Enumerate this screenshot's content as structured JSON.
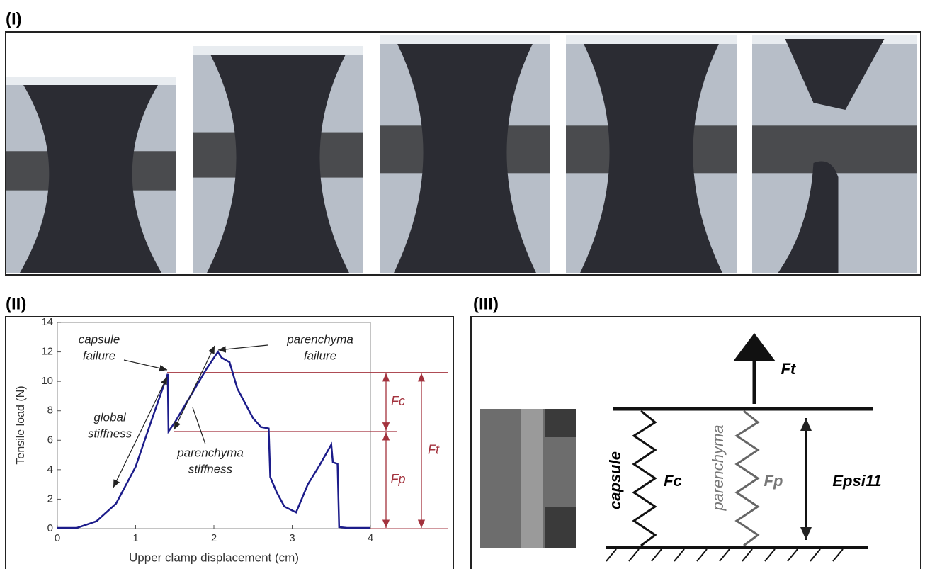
{
  "panel_labels": [
    "(I)",
    "(II)",
    "(III)"
  ],
  "chart_data": {
    "type": "line",
    "xlabel": "Upper clamp displacement (cm)",
    "ylabel": "Tensile load (N)",
    "x": [
      0,
      0.25,
      0.5,
      0.75,
      1.0,
      1.2,
      1.41,
      1.42,
      1.5,
      1.7,
      1.9,
      2.05,
      2.1,
      2.2,
      2.3,
      2.5,
      2.6,
      2.7,
      2.72,
      2.8,
      2.9,
      3.05,
      3.2,
      3.35,
      3.5,
      3.52,
      3.58,
      3.6,
      3.7,
      4.0
    ],
    "values": [
      0.05,
      0.05,
      0.5,
      1.7,
      4.2,
      7.3,
      10.5,
      6.6,
      7.2,
      9.0,
      10.8,
      12.0,
      11.6,
      11.3,
      9.5,
      7.5,
      6.9,
      6.8,
      3.5,
      2.5,
      1.5,
      1.1,
      3.0,
      4.3,
      5.7,
      4.5,
      4.4,
      0.1,
      0.05,
      0.05
    ],
    "color": "#1c1c8a",
    "xlim": [
      0,
      4
    ],
    "ylim": [
      0,
      14
    ],
    "xticks": [
      0,
      1,
      2,
      3,
      4
    ],
    "yticks": [
      0,
      2,
      4,
      6,
      8,
      10,
      12,
      14
    ],
    "hlines": [
      10.6,
      6.6
    ],
    "hline_color": "#a3323d",
    "annotations": [
      [
        "capsule",
        "failure"
      ],
      [
        "parenchyma",
        "failure"
      ],
      [
        "global",
        "stiffness"
      ],
      [
        "parenchyma",
        "stiffness"
      ]
    ],
    "force_labels": [
      "Fc",
      "Fp",
      "Ft"
    ]
  },
  "diagram": {
    "force": "Ft",
    "capsule": "capsule",
    "capsule_force": "Fc",
    "parenchyma": "parenchyma",
    "parenchyma_force": "Fp",
    "strain": "Epsi11"
  }
}
